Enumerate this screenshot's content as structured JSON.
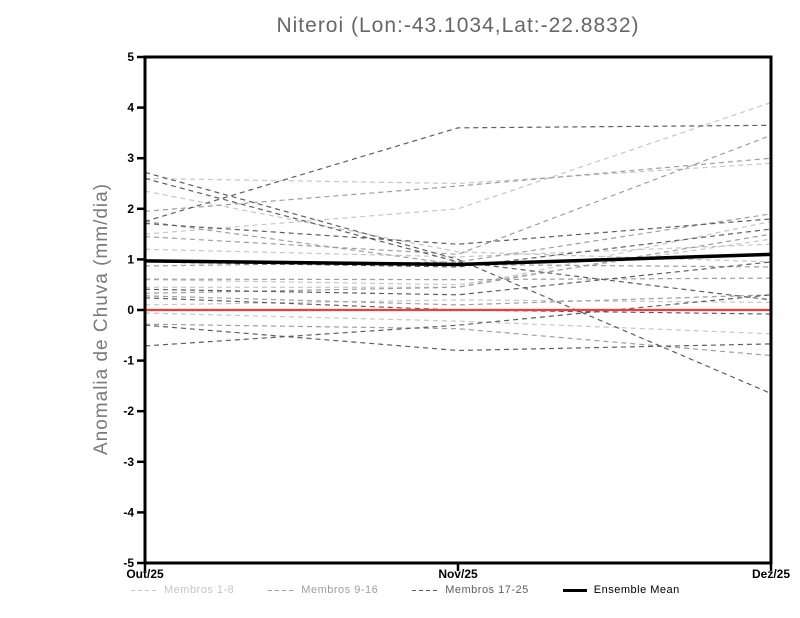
{
  "header": {
    "title": "Niteroi (Lon:-43.1034,Lat:-22.8832)"
  },
  "chart_data": {
    "type": "line",
    "title": "Niteroi (Lon:-43.1034,Lat:-22.8832)",
    "xlabel": "",
    "ylabel": "Anomalia de Chuva (mm/dia)",
    "x_categories": [
      "Out/25",
      "Nov/25",
      "Dez/25"
    ],
    "ylim": [
      -5,
      5
    ],
    "yticks": [
      5,
      4,
      3,
      2,
      1,
      0,
      -1,
      -2,
      -3,
      -4,
      -5
    ],
    "grid": false,
    "legend_position": "bottom",
    "series_groups": [
      {
        "name": "Membros 1-8",
        "color": "#c6c6c6",
        "line_style": "dashed",
        "members": [
          {
            "name": "Membro 1",
            "values": [
              2.35,
              1.15,
              0.95
            ]
          },
          {
            "name": "Membro 2",
            "values": [
              1.2,
              1.05,
              1.3
            ]
          },
          {
            "name": "Membro 3",
            "values": [
              1.5,
              2.0,
              4.1
            ]
          },
          {
            "name": "Membro 4",
            "values": [
              2.6,
              2.5,
              2.9
            ]
          },
          {
            "name": "Membro 5",
            "values": [
              0.6,
              0.5,
              1.4
            ]
          },
          {
            "name": "Membro 6",
            "values": [
              0.1,
              0.2,
              0.15
            ]
          },
          {
            "name": "Membro 7",
            "values": [
              -0.06,
              -0.22,
              -0.47
            ]
          },
          {
            "name": "Membro 8",
            "values": [
              0.45,
              0.45,
              1.75
            ]
          }
        ]
      },
      {
        "name": "Membros 9-16",
        "color": "#9e9e9e",
        "line_style": "dashed",
        "members": [
          {
            "name": "Membro 9",
            "values": [
              1.95,
              2.45,
              3.0
            ]
          },
          {
            "name": "Membro 10",
            "values": [
              1.45,
              1.1,
              3.45
            ]
          },
          {
            "name": "Membro 11",
            "values": [
              0.87,
              0.95,
              1.9
            ]
          },
          {
            "name": "Membro 12",
            "values": [
              0.61,
              0.6,
              0.63
            ]
          },
          {
            "name": "Membro 13",
            "values": [
              0.28,
              0.1,
              0.3
            ]
          },
          {
            "name": "Membro 14",
            "values": [
              -0.28,
              -0.37,
              -0.9
            ]
          },
          {
            "name": "Membro 15",
            "values": [
              1.75,
              0.9,
              0.85
            ]
          },
          {
            "name": "Membro 16",
            "values": [
              0.33,
              0.45,
              1.5
            ]
          }
        ]
      },
      {
        "name": "Membros 17-25",
        "color": "#5e5e5e",
        "line_style": "dashed",
        "members": [
          {
            "name": "Membro 17",
            "values": [
              1.75,
              3.6,
              3.65
            ]
          },
          {
            "name": "Membro 18",
            "values": [
              2.72,
              1.0,
              -1.65
            ]
          },
          {
            "name": "Membro 19",
            "values": [
              2.6,
              0.95,
              0.2
            ]
          },
          {
            "name": "Membro 20",
            "values": [
              1.71,
              1.3,
              1.8
            ]
          },
          {
            "name": "Membro 21",
            "values": [
              0.95,
              0.85,
              1.6
            ]
          },
          {
            "name": "Membro 22",
            "values": [
              0.41,
              0.3,
              0.95
            ]
          },
          {
            "name": "Membro 23",
            "values": [
              0.24,
              0.0,
              -0.08
            ]
          },
          {
            "name": "Membro 24",
            "values": [
              -0.71,
              -0.3,
              0.3
            ]
          },
          {
            "name": "Membro 25",
            "values": [
              -0.3,
              -0.8,
              -0.67
            ]
          }
        ]
      }
    ],
    "zero_line": {
      "color": "#f23b3b",
      "values": [
        0,
        0,
        0
      ]
    },
    "ensemble_mean": {
      "name": "Ensemble Mean",
      "color": "#000000",
      "values": [
        0.97,
        0.9,
        1.1
      ]
    }
  },
  "legend": {
    "items": [
      {
        "label": "Membros 1-8",
        "color": "#c6c6c6",
        "sample": "dashed"
      },
      {
        "label": "Membros 9-16",
        "color": "#9e9e9e",
        "sample": "dashed"
      },
      {
        "label": "Membros 17-25",
        "color": "#5e5e5e",
        "sample": "dashed"
      },
      {
        "label": "Ensemble Mean",
        "color": "#000000",
        "sample": "solid"
      }
    ]
  },
  "colors": {
    "background": "#ffffff",
    "axis": "#000000",
    "title_text": "#666666",
    "ylabel_text": "#7a7a7a",
    "zero_line": "#f23b3b"
  }
}
